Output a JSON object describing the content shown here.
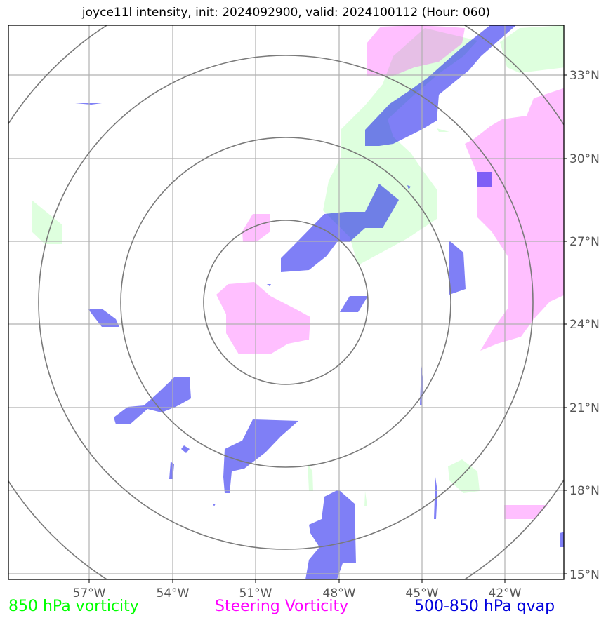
{
  "title": "joyce11l intensity, init: 2024092900, valid: 2024100112 (Hour: 060)",
  "lon_labels": [
    "57°W",
    "54°W",
    "51°W",
    "48°W",
    "45°W",
    "42°W"
  ],
  "lat_labels": [
    "33°N",
    "30°N",
    "27°N",
    "24°N",
    "21°N",
    "18°N",
    "15°N"
  ],
  "legend": {
    "vort850": {
      "label": "850 hPa vorticity",
      "color": "#00ff00"
    },
    "steering": {
      "label": "Steering Vorticity",
      "color": "#ff00ff"
    },
    "qvap": {
      "label": "500-850 hPa qvap",
      "color": "#0000dd"
    }
  }
}
